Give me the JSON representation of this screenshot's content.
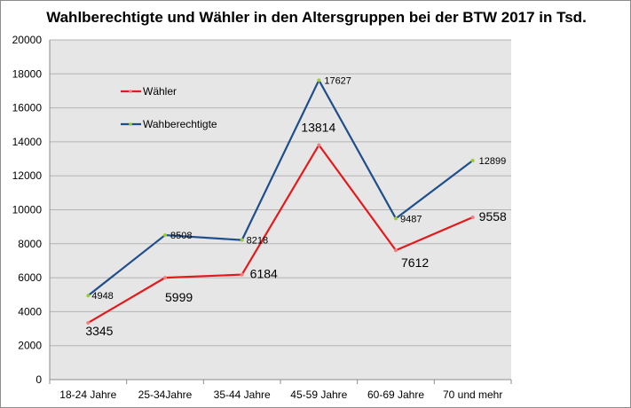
{
  "chart_data": {
    "type": "line",
    "title": "Wahlberechtigte und Wähler in den Altersgruppen bei der BTW 2017 in Tsd.",
    "xlabel": "",
    "ylabel": "",
    "categories": [
      "18-24 Jahre",
      "25-34Jahre",
      "35-44 Jahre",
      "45-59 Jahre",
      "60-69 Jahre",
      "70 und mehr"
    ],
    "ylim": [
      0,
      20000
    ],
    "yticks": [
      0,
      2000,
      4000,
      6000,
      8000,
      10000,
      12000,
      14000,
      16000,
      18000,
      20000
    ],
    "grid": true,
    "legend_position": "top-left",
    "series": [
      {
        "name": "Wähler",
        "color": "#e31a1c",
        "values": [
          3345,
          5999,
          6184,
          13814,
          7612,
          9558
        ],
        "labels": [
          "3345",
          "5999",
          "6184",
          "13814",
          "7612",
          "9558"
        ]
      },
      {
        "name": "Wahberechtigte",
        "color": "#1f4e8c",
        "values": [
          4948,
          8508,
          8218,
          17627,
          9487,
          12899
        ],
        "labels": [
          "4948",
          "8508",
          "8218",
          "17627",
          "9487",
          "12899"
        ]
      }
    ]
  }
}
